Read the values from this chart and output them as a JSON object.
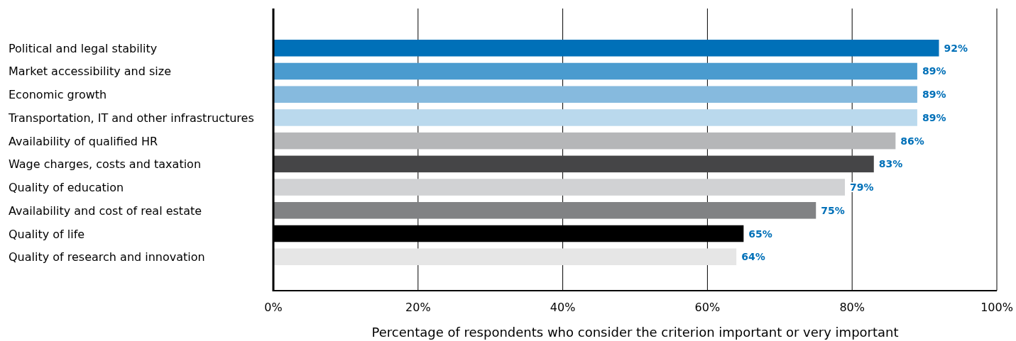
{
  "chart_data": {
    "type": "bar",
    "orientation": "horizontal",
    "xlabel": "Percentage of respondents who consider the criterion important or very important",
    "categories": [
      "Political and legal stability",
      "Market accessibility and size",
      "Economic growth",
      "Transportation, IT and other infrastructures",
      "Availability of qualified HR",
      "Wage charges, costs and taxation",
      "Quality of education",
      "Availability and cost of real estate",
      "Quality of life",
      "Quality of research and innovation"
    ],
    "values": [
      92,
      89,
      89,
      89,
      86,
      83,
      79,
      75,
      65,
      64
    ],
    "value_labels": [
      "92%",
      "89%",
      "89%",
      "89%",
      "86%",
      "83%",
      "79%",
      "75%",
      "65%",
      "64%"
    ],
    "colors": [
      "#0070b8",
      "#4a9bcf",
      "#86bade",
      "#bad9ed",
      "#b5b6b8",
      "#454547",
      "#d1d2d4",
      "#818284",
      "#000000",
      "#e6e6e6"
    ],
    "xlim": [
      0,
      100
    ],
    "xticks": [
      {
        "value": 0,
        "label": "0%"
      },
      {
        "value": 20,
        "label": "20%"
      },
      {
        "value": 40,
        "label": "40%"
      },
      {
        "value": 60,
        "label": "60%"
      },
      {
        "value": 80,
        "label": "80%"
      },
      {
        "value": 100,
        "label": "100%"
      }
    ],
    "grid": "x"
  }
}
